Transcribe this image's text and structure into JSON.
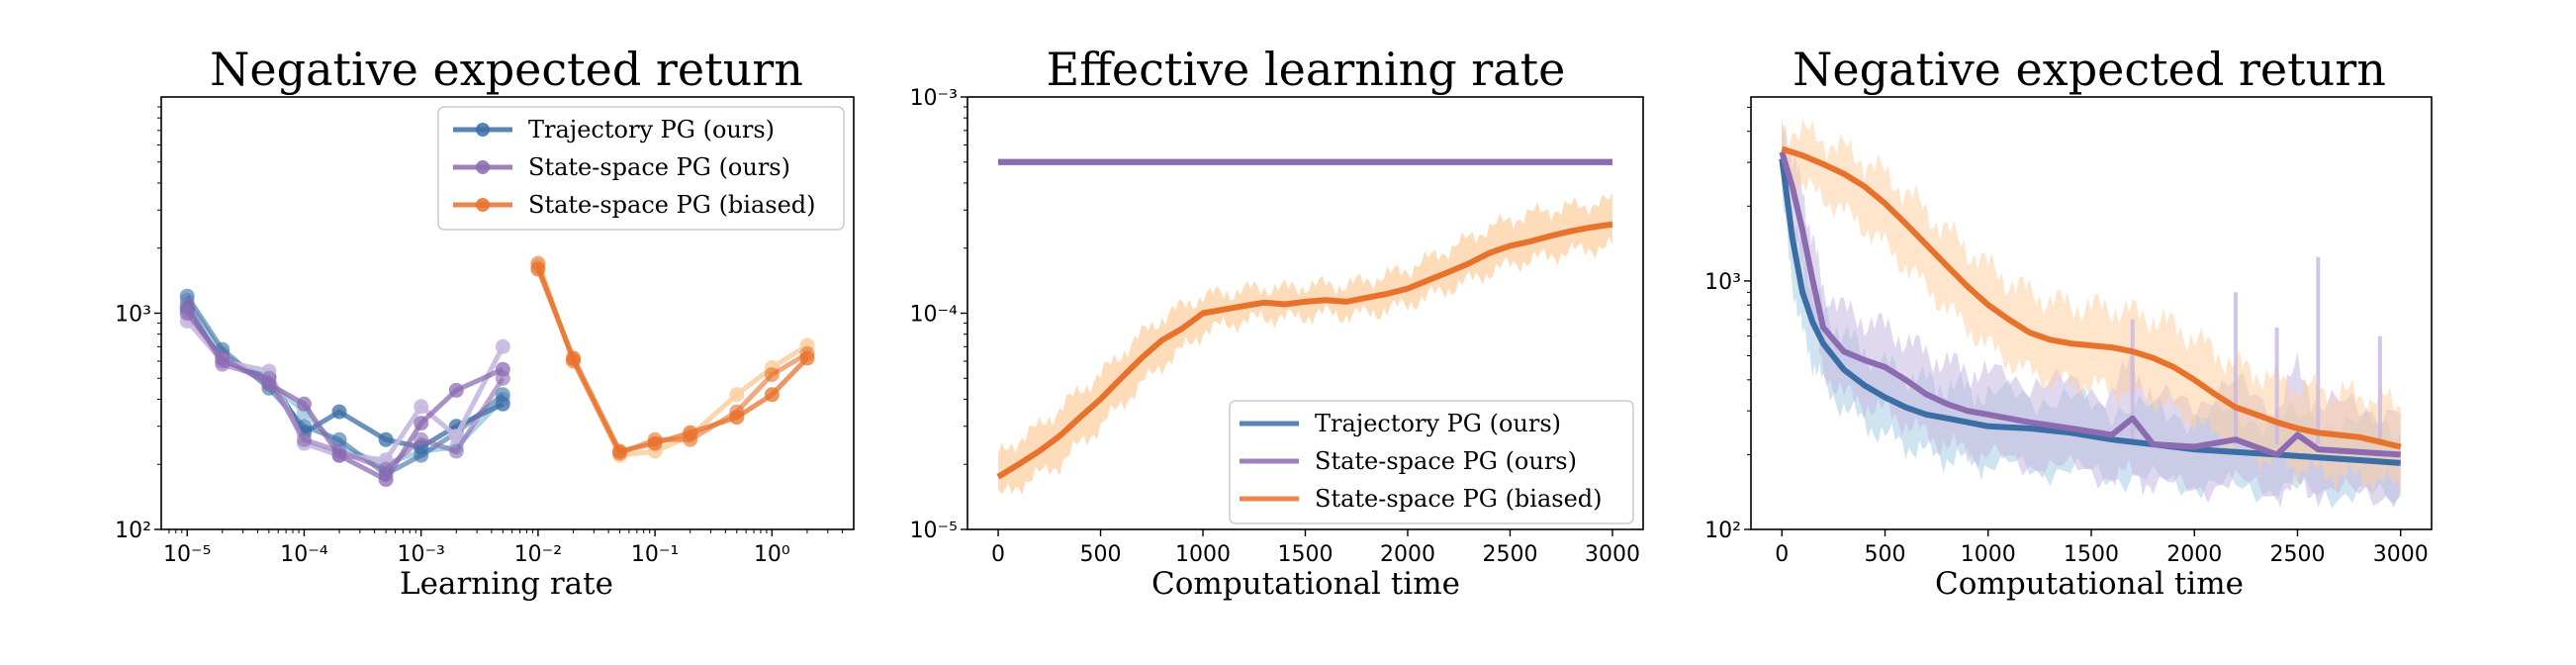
{
  "colors": {
    "traj": "#3a6ea5",
    "state": "#8c6bb1",
    "biased": "#e8722b",
    "traj_light": "#a6cee3",
    "state_light": "#c7b8e0",
    "biased_light": "#fdd0a2"
  },
  "chart_data": [
    {
      "type": "line",
      "title": "Negative expected return",
      "xlabel": "Learning rate",
      "ylabel": "",
      "xscale": "log",
      "yscale": "log",
      "xlim": [
        6e-06,
        5
      ],
      "ylim": [
        100,
        10000
      ],
      "xtick_labels": [
        "10⁻⁵",
        "10⁻⁴",
        "10⁻³",
        "10⁻²",
        "10⁻¹",
        "10⁰"
      ],
      "xtick_values": [
        1e-05,
        0.0001,
        0.001,
        0.01,
        0.1,
        1
      ],
      "ytick_labels": [
        "10²",
        "10³"
      ],
      "ytick_values": [
        100,
        1000
      ],
      "legend_position": "top-right",
      "legend": [
        {
          "name": "Trajectory PG (ours)",
          "color_key": "traj"
        },
        {
          "name": "State-space PG (ours)",
          "color_key": "state"
        },
        {
          "name": "State-space PG (biased)",
          "color_key": "biased"
        }
      ],
      "series": [
        {
          "name": "Trajectory PG (ours)",
          "color_key": "traj",
          "runs": [
            {
              "x": [
                1e-05,
                2e-05,
                5e-05,
                0.0001,
                0.0002,
                0.0005,
                0.001,
                0.002,
                0.005
              ],
              "y": [
                1150,
                650,
                480,
                350,
                240,
                200,
                230,
                240,
                400
              ]
            },
            {
              "x": [
                1e-05,
                2e-05,
                5e-05,
                0.0001,
                0.0002,
                0.0005,
                0.001,
                0.002,
                0.005
              ],
              "y": [
                1050,
                600,
                510,
                280,
                350,
                260,
                240,
                300,
                380
              ]
            },
            {
              "x": [
                1e-05,
                2e-05,
                5e-05,
                0.0001,
                0.0002,
                0.0005,
                0.001,
                0.002,
                0.005
              ],
              "y": [
                1200,
                680,
                450,
                300,
                260,
                180,
                220,
                280,
                420
              ]
            }
          ]
        },
        {
          "name": "State-space PG (ours)",
          "color_key": "state",
          "runs": [
            {
              "x": [
                1e-05,
                2e-05,
                5e-05,
                0.0001,
                0.0002,
                0.0005,
                0.001,
                0.002,
                0.005
              ],
              "y": [
                920,
                600,
                540,
                250,
                220,
                210,
                370,
                270,
                700
              ]
            },
            {
              "x": [
                1e-05,
                2e-05,
                5e-05,
                0.0001,
                0.0002,
                0.0005,
                0.001,
                0.002,
                0.005
              ],
              "y": [
                1000,
                620,
                470,
                380,
                220,
                170,
                310,
                440,
                550
              ]
            },
            {
              "x": [
                1e-05,
                2e-05,
                5e-05,
                0.0001,
                0.0002,
                0.0005,
                0.001,
                0.002,
                0.005
              ],
              "y": [
                1100,
                580,
                500,
                260,
                230,
                190,
                260,
                230,
                500
              ]
            }
          ]
        },
        {
          "name": "State-space PG (biased)",
          "color_key": "biased",
          "runs": [
            {
              "x": [
                0.01,
                0.02,
                0.05,
                0.1,
                0.2,
                0.5,
                1,
                2
              ],
              "y": [
                1650,
                610,
                220,
                230,
                270,
                420,
                560,
                710
              ]
            },
            {
              "x": [
                0.01,
                0.02,
                0.05,
                0.1,
                0.2,
                0.5,
                1,
                2
              ],
              "y": [
                1600,
                620,
                230,
                250,
                280,
                330,
                420,
                620
              ]
            },
            {
              "x": [
                0.01,
                0.02,
                0.05,
                0.1,
                0.2,
                0.5,
                1,
                2
              ],
              "y": [
                1700,
                600,
                225,
                260,
                260,
                350,
                520,
                650
              ]
            }
          ]
        }
      ]
    },
    {
      "type": "line",
      "title": "Effective learning rate",
      "xlabel": "Computational time",
      "ylabel": "",
      "yscale": "log",
      "xlim": [
        -150,
        3150
      ],
      "ylim": [
        1e-05,
        0.001
      ],
      "xtick_values": [
        0,
        500,
        1000,
        1500,
        2000,
        2500,
        3000
      ],
      "xtick_labels": [
        "0",
        "500",
        "1000",
        "1500",
        "2000",
        "2500",
        "3000"
      ],
      "ytick_values": [
        1e-05,
        0.0001,
        0.001
      ],
      "ytick_labels": [
        "10⁻⁵",
        "10⁻⁴",
        "10⁻³"
      ],
      "legend_position": "bottom-right",
      "legend": [
        {
          "name": "Trajectory PG (ours)",
          "color_key": "traj"
        },
        {
          "name": "State-space PG (ours)",
          "color_key": "state"
        },
        {
          "name": "State-space PG (biased)",
          "color_key": "biased"
        }
      ],
      "series": [
        {
          "name": "Trajectory PG (ours)",
          "color_key": "traj",
          "x": [
            0,
            3000
          ],
          "y": [
            0.0005,
            0.0005
          ]
        },
        {
          "name": "State-space PG (ours)",
          "color_key": "state",
          "x": [
            0,
            3000
          ],
          "y": [
            0.0005,
            0.0005
          ]
        },
        {
          "name": "State-space PG (biased)",
          "color_key": "biased",
          "x": [
            0,
            100,
            200,
            300,
            400,
            500,
            600,
            700,
            800,
            900,
            1000,
            1100,
            1200,
            1300,
            1400,
            1500,
            1600,
            1700,
            1800,
            1900,
            2000,
            2100,
            2200,
            2300,
            2400,
            2500,
            2600,
            2700,
            2800,
            2900,
            3000
          ],
          "y": [
            1.75e-05,
            2e-05,
            2.3e-05,
            2.7e-05,
            3.3e-05,
            4e-05,
            5e-05,
            6.2e-05,
            7.5e-05,
            8.5e-05,
            0.0001,
            0.000104,
            0.000108,
            0.000112,
            0.00011,
            0.000113,
            0.000115,
            0.000113,
            0.000118,
            0.000123,
            0.00013,
            0.000142,
            0.000155,
            0.00017,
            0.00019,
            0.000205,
            0.000215,
            0.000228,
            0.00024,
            0.00025,
            0.000258
          ],
          "lower": [
            1.4e-05,
            1.6e-05,
            1.8e-05,
            2e-05,
            2.5e-05,
            3e-05,
            3.8e-05,
            4.7e-05,
            5.8e-05,
            6.8e-05,
            8.2e-05,
            8.8e-05,
            9.2e-05,
            9.6e-05,
            9.5e-05,
            9.7e-05,
            0.0001,
            9.8e-05,
            0.0001,
            0.000104,
            0.00011,
            0.00012,
            0.00013,
            0.000142,
            0.000155,
            0.000168,
            0.000177,
            0.000185,
            0.000193,
            0.0002,
            0.000205
          ],
          "upper": [
            2.2e-05,
            2.6e-05,
            3e-05,
            3.6e-05,
            4.4e-05,
            5.2e-05,
            6.5e-05,
            8e-05,
            9.5e-05,
            0.000108,
            0.00012,
            0.000124,
            0.000128,
            0.000132,
            0.00013,
            0.000134,
            0.000136,
            0.000135,
            0.000142,
            0.00015,
            0.00016,
            0.000178,
            0.000198,
            0.000222,
            0.00025,
            0.00027,
            0.00029,
            0.0003,
            0.00031,
            0.00032,
            0.00033
          ]
        }
      ]
    },
    {
      "type": "line",
      "title": "Negative expected return",
      "xlabel": "Computational time",
      "ylabel": "",
      "yscale": "log",
      "xlim": [
        -150,
        3150
      ],
      "ylim": [
        100,
        5500
      ],
      "xtick_values": [
        0,
        500,
        1000,
        1500,
        2000,
        2500,
        3000
      ],
      "xtick_labels": [
        "0",
        "500",
        "1000",
        "1500",
        "2000",
        "2500",
        "3000"
      ],
      "ytick_values": [
        100,
        1000
      ],
      "ytick_labels": [
        "10²",
        "10³"
      ],
      "series": [
        {
          "name": "Trajectory PG (ours)",
          "color_key": "traj",
          "x": [
            0,
            50,
            100,
            150,
            200,
            300,
            400,
            500,
            600,
            700,
            800,
            900,
            1000,
            1200,
            1400,
            1600,
            1800,
            2000,
            2200,
            2400,
            2600,
            2800,
            3000
          ],
          "y": [
            3100,
            1500,
            900,
            680,
            560,
            440,
            380,
            340,
            310,
            290,
            280,
            270,
            260,
            255,
            245,
            230,
            220,
            210,
            205,
            200,
            195,
            190,
            185
          ],
          "lower": [
            2200,
            1000,
            620,
            470,
            390,
            310,
            270,
            240,
            220,
            205,
            195,
            190,
            182,
            178,
            172,
            165,
            158,
            152,
            148,
            145,
            142,
            138,
            135
          ],
          "upper": [
            3800,
            2000,
            1250,
            950,
            780,
            610,
            520,
            460,
            420,
            395,
            380,
            365,
            350,
            345,
            330,
            315,
            300,
            290,
            285,
            280,
            275,
            265,
            260
          ]
        },
        {
          "name": "State-space PG (ours)",
          "color_key": "state",
          "x": [
            0,
            50,
            100,
            150,
            200,
            300,
            400,
            500,
            600,
            700,
            800,
            900,
            1000,
            1200,
            1400,
            1600,
            1700,
            1800,
            2000,
            2200,
            2400,
            2500,
            2600,
            2800,
            3000
          ],
          "y": [
            3300,
            2400,
            1600,
            1000,
            650,
            520,
            480,
            450,
            400,
            350,
            320,
            300,
            290,
            270,
            255,
            240,
            280,
            220,
            215,
            230,
            200,
            240,
            210,
            205,
            200
          ],
          "lower": [
            2400,
            1700,
            1100,
            680,
            440,
            350,
            320,
            300,
            270,
            240,
            220,
            205,
            195,
            185,
            175,
            165,
            170,
            150,
            148,
            155,
            140,
            150,
            142,
            140,
            138
          ],
          "upper": [
            4200,
            3200,
            2300,
            1450,
            950,
            760,
            700,
            650,
            580,
            510,
            470,
            440,
            420,
            400,
            380,
            360,
            480,
            330,
            330,
            380,
            310,
            450,
            320,
            310,
            300
          ]
        },
        {
          "name": "State-space PG (biased)",
          "color_key": "biased",
          "x": [
            0,
            100,
            200,
            300,
            400,
            500,
            600,
            700,
            800,
            900,
            1000,
            1100,
            1200,
            1300,
            1400,
            1500,
            1600,
            1700,
            1800,
            1900,
            2000,
            2100,
            2200,
            2300,
            2400,
            2500,
            2600,
            2700,
            2800,
            2900,
            3000
          ],
          "y": [
            3400,
            3200,
            2950,
            2700,
            2400,
            2050,
            1700,
            1400,
            1150,
            950,
            800,
            700,
            620,
            580,
            560,
            550,
            540,
            520,
            490,
            450,
            400,
            350,
            310,
            290,
            270,
            255,
            245,
            240,
            235,
            225,
            215
          ],
          "lower": [
            2600,
            2400,
            2200,
            1900,
            1650,
            1400,
            1150,
            950,
            780,
            650,
            550,
            480,
            430,
            400,
            390,
            380,
            370,
            355,
            335,
            305,
            275,
            240,
            215,
            200,
            188,
            178,
            170,
            166,
            162,
            156,
            150
          ],
          "upper": [
            4200,
            4000,
            3700,
            3400,
            3050,
            2700,
            2300,
            1900,
            1600,
            1350,
            1150,
            1000,
            900,
            840,
            800,
            790,
            780,
            750,
            710,
            660,
            590,
            520,
            460,
            430,
            400,
            380,
            365,
            355,
            345,
            335,
            320
          ]
        }
      ]
    }
  ]
}
